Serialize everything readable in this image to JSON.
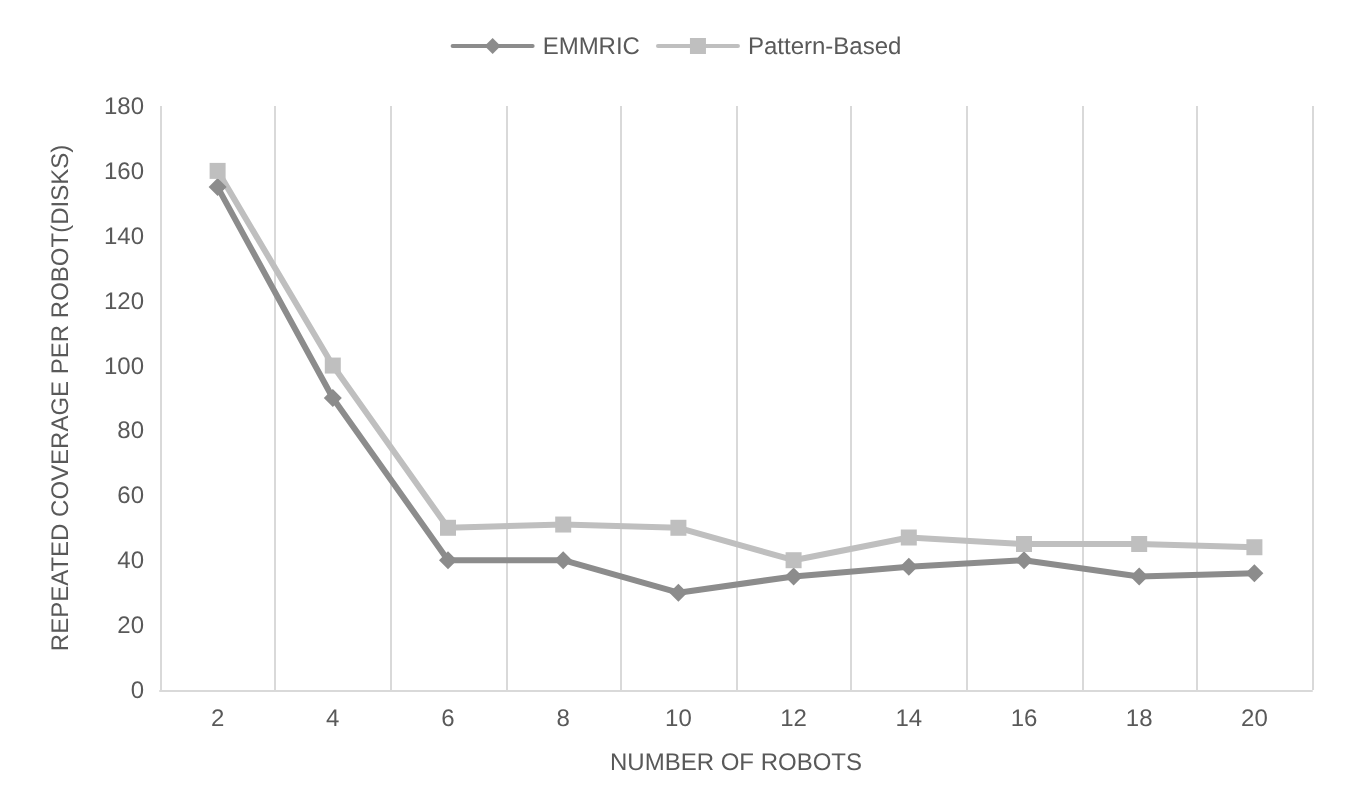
{
  "chart_data": {
    "type": "line",
    "xlabel": "NUMBER OF ROBOTS",
    "ylabel": "REPEATED COVERAGE PER ROBOT(DISKS)",
    "categories": [
      "2",
      "4",
      "6",
      "8",
      "10",
      "12",
      "14",
      "16",
      "18",
      "20"
    ],
    "series": [
      {
        "name": "EMMRIC",
        "color": "#8c8c8c",
        "marker": "diamond",
        "values": [
          155,
          90,
          40,
          40,
          30,
          35,
          38,
          40,
          35,
          36
        ]
      },
      {
        "name": "Pattern-Based",
        "color": "#bfbfbf",
        "marker": "square",
        "values": [
          160,
          100,
          50,
          51,
          50,
          40,
          47,
          45,
          45,
          44
        ]
      }
    ],
    "ylim": [
      0,
      180
    ],
    "yticks": [
      0,
      20,
      40,
      60,
      80,
      100,
      120,
      140,
      160,
      180
    ],
    "grid": "x",
    "legend": "top",
    "line_style": "solid"
  }
}
